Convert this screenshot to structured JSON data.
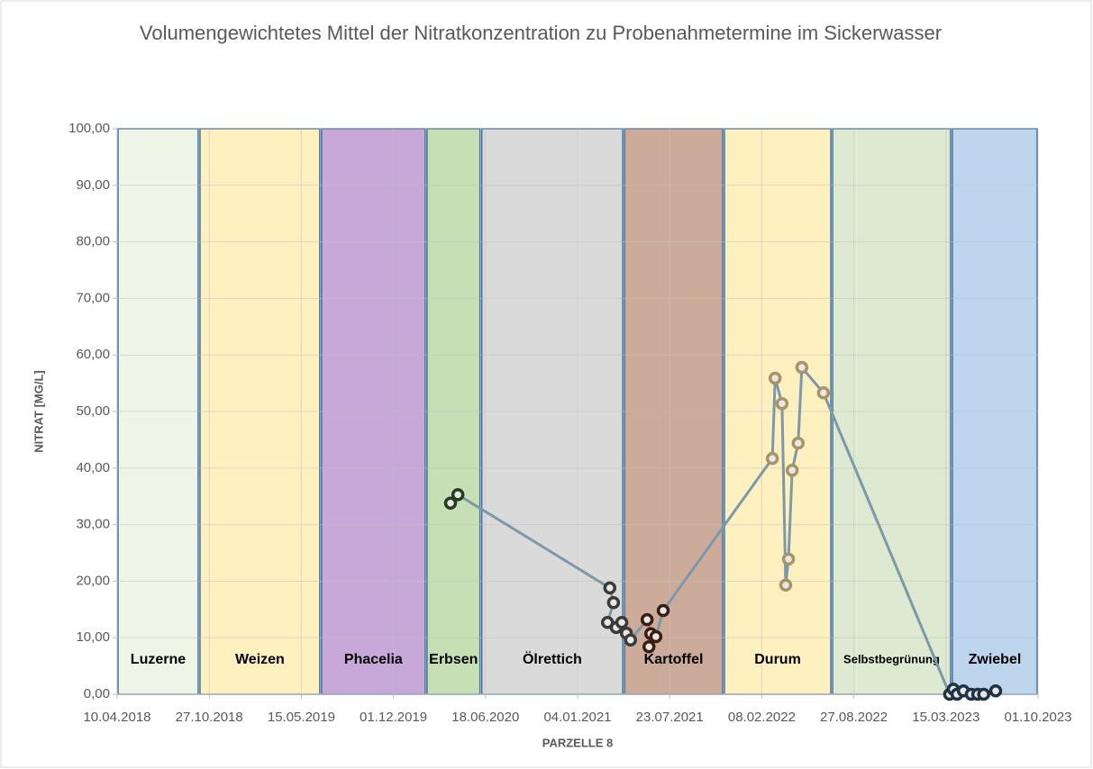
{
  "chart_data": {
    "type": "line",
    "title": "Volumengewichtetes Mittel der Nitratkonzentration zu Probenahmetermine im Sickerwasser",
    "x_label": "PARZELLE 8",
    "y_label": "NITRAT [MG/L]",
    "xlim": [
      "2018-04-10",
      "2023-10-01"
    ],
    "xticks": [
      {
        "value": "2018-04-10",
        "label": "10.04.2018"
      },
      {
        "value": "2018-10-27",
        "label": "27.10.2018"
      },
      {
        "value": "2019-05-15",
        "label": "15.05.2019"
      },
      {
        "value": "2019-12-01",
        "label": "01.12.2019"
      },
      {
        "value": "2020-06-18",
        "label": "18.06.2020"
      },
      {
        "value": "2021-01-04",
        "label": "04.01.2021"
      },
      {
        "value": "2021-07-23",
        "label": "23.07.2021"
      },
      {
        "value": "2022-02-08",
        "label": "08.02.2022"
      },
      {
        "value": "2022-08-27",
        "label": "27.08.2022"
      },
      {
        "value": "2023-03-15",
        "label": "15.03.2023"
      },
      {
        "value": "2023-10-01",
        "label": "01.10.2023"
      }
    ],
    "ylim": [
      0,
      100
    ],
    "yticks": [
      {
        "value": 0,
        "label": "0,00"
      },
      {
        "value": 10,
        "label": "10,00"
      },
      {
        "value": 20,
        "label": "20,00"
      },
      {
        "value": 30,
        "label": "30,00"
      },
      {
        "value": 40,
        "label": "40,00"
      },
      {
        "value": 50,
        "label": "50,00"
      },
      {
        "value": 60,
        "label": "60,00"
      },
      {
        "value": 70,
        "label": "70,00"
      },
      {
        "value": 80,
        "label": "80,00"
      },
      {
        "value": 90,
        "label": "90,00"
      },
      {
        "value": 100,
        "label": "100,00"
      }
    ],
    "grid": true,
    "bands": [
      {
        "label": "Luzerne",
        "start": "2018-04-10",
        "end": "2018-10-05",
        "color": "#eef5e6"
      },
      {
        "label": "Weizen",
        "start": "2018-10-05",
        "end": "2019-06-26",
        "color": "#fff0c0"
      },
      {
        "label": "Phacelia",
        "start": "2019-06-26",
        "end": "2020-02-10",
        "color": "#c8a8d8"
      },
      {
        "label": "Erbsen",
        "start": "2020-02-10",
        "end": "2020-06-08",
        "color": "#c6dfb5"
      },
      {
        "label": "Ölrettich",
        "start": "2020-06-08",
        "end": "2021-04-14",
        "color": "#dadada"
      },
      {
        "label": "Kartoffel",
        "start": "2021-04-14",
        "end": "2021-11-17",
        "color": "#cdab9a"
      },
      {
        "label": "Durum",
        "start": "2021-11-17",
        "end": "2022-07-10",
        "color": "#fff0c0"
      },
      {
        "label": "Selbstbegrünung",
        "start": "2022-07-10",
        "end": "2023-03-27",
        "color": "#dde9d0"
      },
      {
        "label": "Zwiebel",
        "start": "2023-03-27",
        "end": "2023-10-01",
        "color": "#bdd6ee"
      }
    ],
    "line_color": "#7d98a8",
    "x": [
      "2020-04-03",
      "2020-04-19",
      "2021-03-15",
      "2021-03-23",
      "2021-03-10",
      "2021-03-29",
      "2021-04-10",
      "2021-04-20",
      "2021-04-29",
      "2021-06-04",
      "2021-06-12",
      "2021-06-08",
      "2021-06-23",
      "2021-07-09",
      "2022-03-03",
      "2022-03-09",
      "2022-03-24",
      "2022-04-01",
      "2022-04-07",
      "2022-04-15",
      "2022-04-28",
      "2022-05-06",
      "2022-06-22",
      "2023-03-23",
      "2023-03-31",
      "2023-04-08",
      "2023-04-22",
      "2023-05-09",
      "2023-05-23",
      "2023-06-05",
      "2023-07-01"
    ],
    "values": [
      33.8,
      35.3,
      18.8,
      16.2,
      12.7,
      11.8,
      12.7,
      10.8,
      9.6,
      13.2,
      10.7,
      8.4,
      10.2,
      14.8,
      41.7,
      55.9,
      51.4,
      19.3,
      23.9,
      39.6,
      44.4,
      57.8,
      53.3,
      0,
      0.9,
      0,
      0.6,
      0,
      0,
      0,
      0.6
    ],
    "marker_colors": [
      "#263b1f",
      "#263b1f",
      "#3a3a3a",
      "#3a3a3a",
      "#3a3a3a",
      "#3a3a3a",
      "#3a3a3a",
      "#3a3a3a",
      "#3a3a3a",
      "#3b1d0f",
      "#3b1d0f",
      "#3b1d0f",
      "#3b1d0f",
      "#3b1d0f",
      "#a89467",
      "#a89467",
      "#a89467",
      "#a89467",
      "#a89467",
      "#a89467",
      "#a89467",
      "#a89467",
      "#a89467",
      "#1f3345",
      "#1f3345",
      "#1f3345",
      "#1f3345",
      "#1f3345",
      "#1f3345",
      "#1f3345",
      "#1f3345"
    ]
  }
}
